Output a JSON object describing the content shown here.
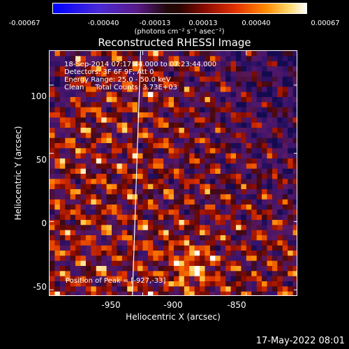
{
  "chart_data": {
    "type": "heatmap",
    "title": "Reconstructed RHESSI Image",
    "xlabel": "Heliocentric X (arcsec)",
    "ylabel": "Heliocentric Y (arcsec)",
    "xlim": [
      -995,
      -875
    ],
    "ylim": [
      -55,
      125
    ],
    "x_ticks": [
      -950,
      -900,
      -850
    ],
    "y_ticks": [
      100,
      50,
      0,
      -50
    ],
    "colorbar": {
      "ticks": [
        "-0.00067",
        "-0.00040",
        "-0.00013",
        "0.00013",
        "0.00040",
        "0.00067"
      ],
      "range": [
        -0.00067,
        0.00067
      ],
      "units": "(photons cm⁻² s⁻¹ asec⁻²)",
      "colors": [
        "#0000ff",
        "#5a1a8a",
        "#2a0500",
        "#e23200",
        "#ff8a00",
        "#ffffff"
      ]
    },
    "annotations": [
      "18-Sep-2014 07:17:44.000 to 07:23:44.000",
      "Detectors: 3F 6F 9F, Att 0",
      "Energy Range: 25.0 - 50.0 keV",
      "Clean     Total Counts: 3.73E+03"
    ],
    "peak_label": "Position of Peak = [-927,-33]",
    "peak_position": [
      -927,
      -33
    ],
    "limb_line_x": [
      -951,
      -955
    ]
  },
  "timestamp": "17-May-2022 08:01"
}
